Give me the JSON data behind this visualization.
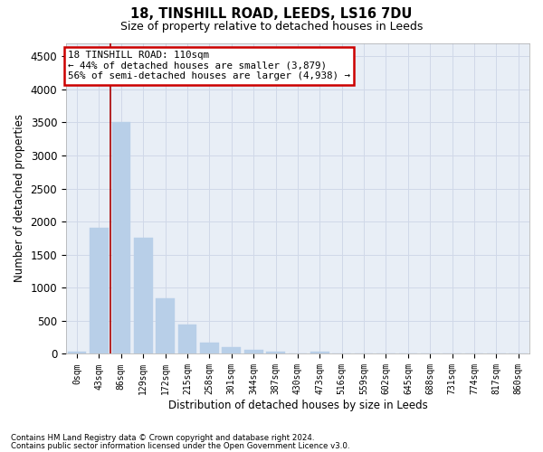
{
  "title_line1": "18, TINSHILL ROAD, LEEDS, LS16 7DU",
  "title_line2": "Size of property relative to detached houses in Leeds",
  "xlabel": "Distribution of detached houses by size in Leeds",
  "ylabel": "Number of detached properties",
  "footnote1": "Contains HM Land Registry data © Crown copyright and database right 2024.",
  "footnote2": "Contains public sector information licensed under the Open Government Licence v3.0.",
  "bar_color": "#b8cfe8",
  "bar_edge_color": "#b8cfe8",
  "categories": [
    "0sqm",
    "43sqm",
    "86sqm",
    "129sqm",
    "172sqm",
    "215sqm",
    "258sqm",
    "301sqm",
    "344sqm",
    "387sqm",
    "430sqm",
    "473sqm",
    "516sqm",
    "559sqm",
    "602sqm",
    "645sqm",
    "688sqm",
    "731sqm",
    "774sqm",
    "817sqm",
    "860sqm"
  ],
  "values": [
    30,
    1900,
    3500,
    1760,
    840,
    450,
    165,
    100,
    55,
    30,
    10,
    40,
    0,
    0,
    0,
    0,
    0,
    0,
    0,
    0,
    0
  ],
  "ylim": [
    0,
    4700
  ],
  "yticks": [
    0,
    500,
    1000,
    1500,
    2000,
    2500,
    3000,
    3500,
    4000,
    4500
  ],
  "property_line_x": 1.5,
  "annotation_title": "18 TINSHILL ROAD: 110sqm",
  "annotation_line1": "← 44% of detached houses are smaller (3,879)",
  "annotation_line2": "56% of semi-detached houses are larger (4,938) →",
  "annotation_box_facecolor": "#ffffff",
  "annotation_box_edgecolor": "#cc0000",
  "property_line_color": "#aa0000",
  "grid_color": "#d0d8e8",
  "plot_bg_color": "#e8eef6"
}
